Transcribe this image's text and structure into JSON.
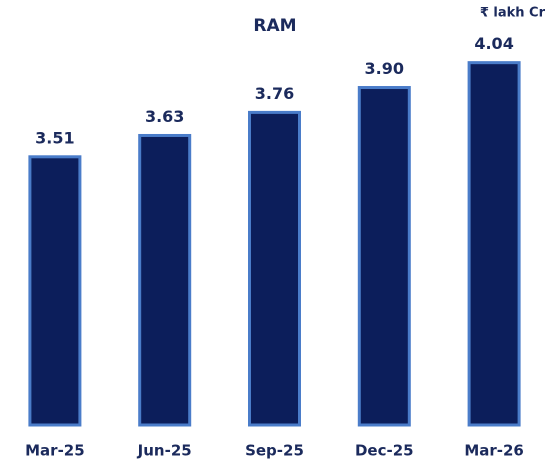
{
  "chart_data": {
    "type": "bar",
    "title": "RAM",
    "unit_label": "₹ lakh Cr",
    "categories": [
      "Mar-25",
      "Jun-25",
      "Sep-25",
      "Dec-25",
      "Mar-26"
    ],
    "values": [
      3.51,
      3.63,
      3.76,
      3.9,
      4.04
    ],
    "value_labels": [
      "3.51",
      "3.63",
      "3.76",
      "3.90",
      "4.04"
    ],
    "color": "#0c1e5b",
    "edge_color": "#4a7cc9",
    "ylim": [
      2,
      4.1
    ]
  }
}
